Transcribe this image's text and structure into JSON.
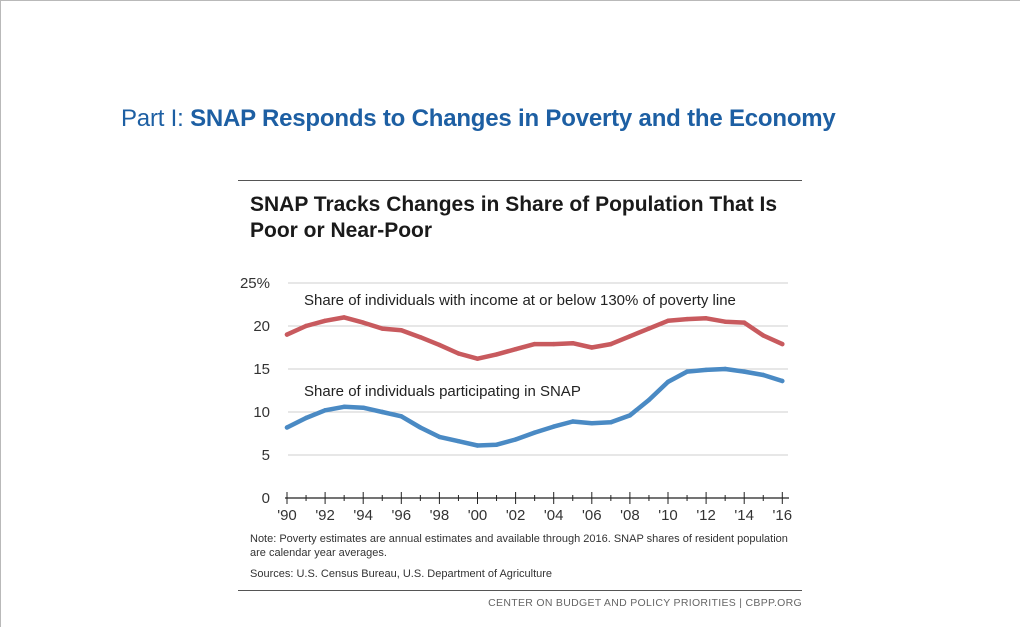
{
  "slide": {
    "title_part": "Part I: ",
    "title_main": "SNAP Responds to Changes in Poverty and the Economy"
  },
  "chart_data": {
    "type": "line",
    "title": "SNAP Tracks Changes in Share of Population That Is Poor or Near-Poor",
    "x": [
      1990,
      1991,
      1992,
      1993,
      1994,
      1995,
      1996,
      1997,
      1998,
      1999,
      2000,
      2001,
      2002,
      2003,
      2004,
      2005,
      2006,
      2007,
      2008,
      2009,
      2010,
      2011,
      2012,
      2013,
      2014,
      2015,
      2016
    ],
    "x_tick_labels": [
      "'90",
      "'92",
      "'94",
      "'96",
      "'98",
      "'00",
      "'02",
      "'04",
      "'06",
      "'08",
      "'10",
      "'12",
      "'14",
      "'16"
    ],
    "y_tick_labels": [
      "0",
      "5",
      "10",
      "15",
      "20",
      "25%"
    ],
    "ylim": [
      0,
      25
    ],
    "grid": true,
    "series": [
      {
        "name": "Share of individuals with income at or below 130% of poverty line",
        "color": "#c85a5e",
        "values": [
          19.0,
          20.0,
          20.6,
          21.0,
          20.4,
          19.7,
          19.5,
          18.7,
          17.8,
          16.8,
          16.2,
          16.7,
          17.3,
          17.9,
          17.9,
          18.0,
          17.5,
          17.9,
          18.8,
          19.7,
          20.6,
          20.8,
          20.9,
          20.5,
          20.4,
          18.9,
          17.9
        ]
      },
      {
        "name": "Share of individuals participating in SNAP",
        "color": "#4a8ac4",
        "values": [
          8.2,
          9.3,
          10.2,
          10.6,
          10.5,
          10.0,
          9.5,
          8.2,
          7.1,
          6.6,
          6.1,
          6.2,
          6.8,
          7.6,
          8.3,
          8.9,
          8.7,
          8.8,
          9.6,
          11.4,
          13.5,
          14.7,
          14.9,
          15.0,
          14.7,
          14.3,
          13.6
        ]
      }
    ],
    "note": "Note: Poverty estimates are annual estimates and available through 2016. SNAP shares of resident population are calendar year averages.",
    "sources": "Sources: U.S. Census Bureau, U.S. Department of Agriculture",
    "footer": "CENTER ON BUDGET AND POLICY PRIORITIES | CBPP.ORG"
  }
}
